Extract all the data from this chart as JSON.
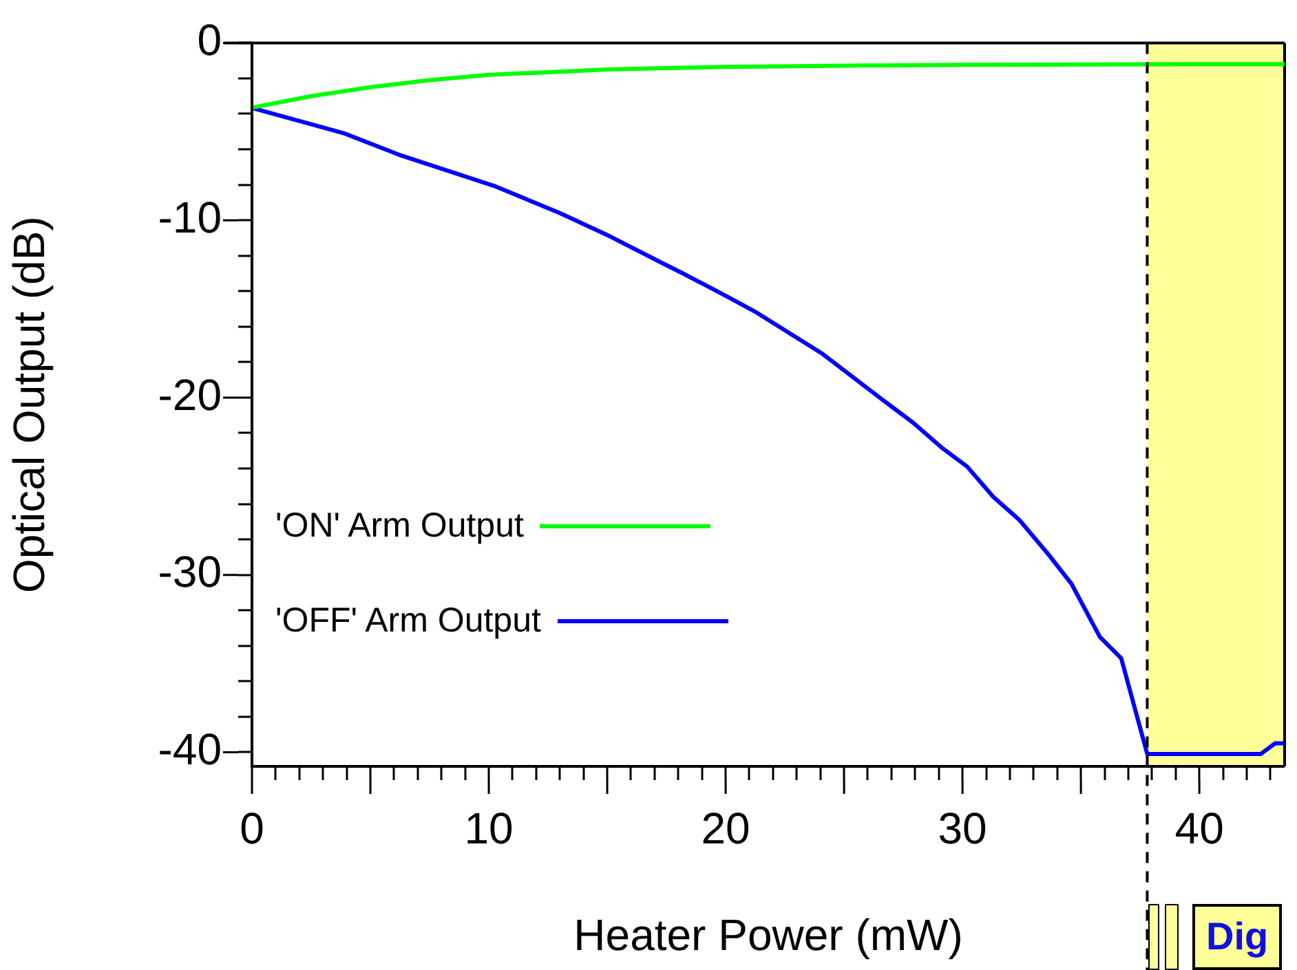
{
  "chart_data": {
    "type": "line",
    "xlabel": "Heater Power (mW)",
    "ylabel": "Optical Output (dB)",
    "xlim": [
      0,
      43.6
    ],
    "ylim": [
      -40.8,
      0
    ],
    "xticks": [
      0,
      {
        "value": 1,
        "label": null
      },
      {
        "value": 2,
        "label": null
      },
      {
        "value": 3,
        "label": null
      },
      {
        "value": 4,
        "label": null
      },
      {
        "value": 5,
        "label": null
      },
      {
        "value": 6,
        "label": null
      },
      {
        "value": 7,
        "label": null
      },
      {
        "value": 8,
        "label": null
      },
      {
        "value": 9,
        "label": null
      },
      10,
      {
        "value": 11,
        "label": null
      },
      {
        "value": 12,
        "label": null
      },
      {
        "value": 13,
        "label": null
      },
      {
        "value": 14,
        "label": null
      },
      {
        "value": 15,
        "label": null
      },
      {
        "value": 16,
        "label": null
      },
      {
        "value": 17,
        "label": null
      },
      {
        "value": 18,
        "label": null
      },
      {
        "value": 19,
        "label": null
      },
      20,
      {
        "value": 21,
        "label": null
      },
      {
        "value": 22,
        "label": null
      },
      {
        "value": 23,
        "label": null
      },
      {
        "value": 24,
        "label": null
      },
      {
        "value": 25,
        "label": null
      },
      {
        "value": 26,
        "label": null
      },
      {
        "value": 27,
        "label": null
      },
      {
        "value": 28,
        "label": null
      },
      {
        "value": 29,
        "label": null
      },
      30,
      {
        "value": 31,
        "label": null
      },
      {
        "value": 32,
        "label": null
      },
      {
        "value": 33,
        "label": null
      },
      {
        "value": 34,
        "label": null
      },
      {
        "value": 35,
        "label": null
      },
      {
        "value": 36,
        "label": null
      },
      {
        "value": 37,
        "label": null
      },
      {
        "value": 38,
        "label": null
      },
      {
        "value": 39,
        "label": null
      },
      40,
      {
        "value": 41,
        "label": null
      },
      {
        "value": 42,
        "label": null
      },
      {
        "value": 43,
        "label": null
      }
    ],
    "yticks": [
      -40,
      {
        "value": -38,
        "label": null
      },
      {
        "value": -36,
        "label": null
      },
      {
        "value": -34,
        "label": null
      },
      {
        "value": -32,
        "label": null
      },
      -30,
      {
        "value": -28,
        "label": null
      },
      {
        "value": -26,
        "label": null
      },
      {
        "value": -24,
        "label": null
      },
      {
        "value": -22,
        "label": null
      },
      -20,
      {
        "value": -18,
        "label": null
      },
      {
        "value": -16,
        "label": null
      },
      {
        "value": -14,
        "label": null
      },
      {
        "value": -12,
        "label": null
      },
      -10,
      {
        "value": -8,
        "label": null
      },
      {
        "value": -6,
        "label": null
      },
      {
        "value": -4,
        "label": null
      },
      {
        "value": -2,
        "label": null
      },
      0
    ],
    "series": [
      {
        "name": "'ON' Arm Output",
        "color": "#00ff00",
        "x": [
          0,
          2.5,
          5,
          7.5,
          10,
          12.5,
          15,
          17.5,
          20,
          25,
          30,
          35,
          40,
          43.6
        ],
        "values": [
          -3.65,
          -3.0,
          -2.5,
          -2.1,
          -1.8,
          -1.65,
          -1.5,
          -1.42,
          -1.35,
          -1.28,
          -1.24,
          -1.22,
          -1.2,
          -1.2
        ]
      },
      {
        "name": "'OFF' Arm Output",
        "color": "#0000ff",
        "x": [
          0,
          3.9,
          6.2,
          10.3,
          13.0,
          15.1,
          17.3,
          18.2,
          20.2,
          21.3,
          24.05,
          26.7,
          27.9,
          29.1,
          30.2,
          31.3,
          32.4,
          33.6,
          34.6,
          35.8,
          36.7,
          37.8,
          42.6,
          43.2,
          43.6
        ],
        "values": [
          -3.67,
          -5.1,
          -6.3,
          -8.1,
          -9.6,
          -10.9,
          -12.4,
          -13.0,
          -14.4,
          -15.2,
          -17.5,
          -20.2,
          -21.4,
          -22.8,
          -23.9,
          -25.6,
          -26.9,
          -28.8,
          -30.5,
          -33.5,
          -34.7,
          -40.1,
          -40.1,
          -39.5,
          -39.5
        ]
      }
    ],
    "legend": "bottom left",
    "grid": false,
    "marker": "none",
    "line_style": "solid",
    "ref_lines": [
      {
        "axis": "x",
        "value": 37.8,
        "color": "#000000",
        "line_style": "dashed"
      }
    ],
    "bands": [
      {
        "axis": "x",
        "from": 37.8,
        "to": 43.6,
        "color": "#ffff99"
      }
    ],
    "annotations": [
      "Dig"
    ]
  }
}
